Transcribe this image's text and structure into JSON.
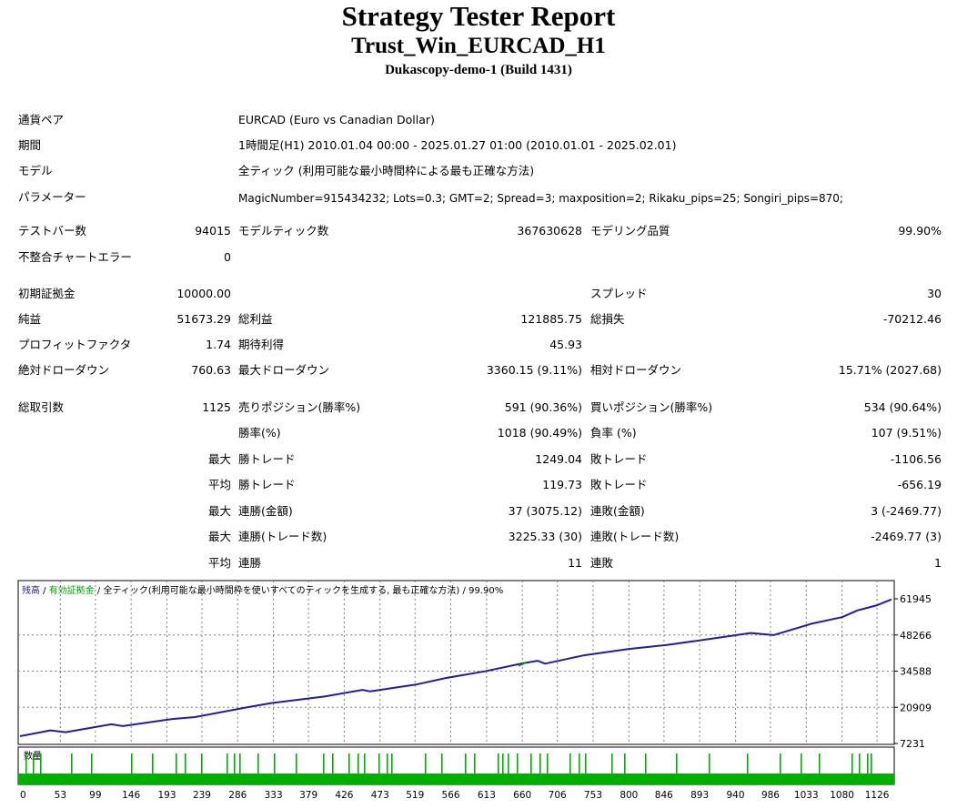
{
  "header": {
    "title": "Strategy Tester Report",
    "subtitle": "Trust_Win_EURCAD_H1",
    "server": "Dukascopy-demo-1 (Build 1431)"
  },
  "info": {
    "pair_label": "通貨ペア",
    "pair_value": "EURCAD (Euro vs Canadian Dollar)",
    "period_label": "期間",
    "period_value": "1時間足(H1) 2010.01.04 00:00 - 2025.01.27 01:00 (2010.01.01 - 2025.02.01)",
    "model_label": "モデル",
    "model_value": "全ティック (利用可能な最小時間枠による最も正確な方法)",
    "params_label": "パラメーター",
    "params_value": "MagicNumber=915434232; Lots=0.3; GMT=2; Spread=3; maxposition=2; Rikaku_pips=25; Songiri_pips=870;"
  },
  "test": {
    "bars_label": "テストバー数",
    "bars_value": "94015",
    "ticks_label": "モデルティック数",
    "ticks_value": "367630628",
    "quality_label": "モデリング品質",
    "quality_value": "99.90%",
    "errors_label": "不整合チャートエラー",
    "errors_value": "0"
  },
  "stats": {
    "deposit_label": "初期証拠金",
    "deposit_value": "10000.00",
    "spread_label": "スプレッド",
    "spread_value": "30",
    "net_label": "純益",
    "net_value": "51673.29",
    "gross_profit_label": "総利益",
    "gross_profit_value": "121885.75",
    "gross_loss_label": "総損失",
    "gross_loss_value": "-70212.46",
    "pf_label": "プロフィットファクタ",
    "pf_value": "1.74",
    "expected_label": "期待利得",
    "expected_value": "45.93",
    "abs_dd_label": "絶対ドローダウン",
    "abs_dd_value": "760.63",
    "max_dd_label": "最大ドローダウン",
    "max_dd_value": "3360.15 (9.11%)",
    "rel_dd_label": "相対ドローダウン",
    "rel_dd_value": "15.71% (2027.68)"
  },
  "trades": {
    "total_label": "総取引数",
    "total_value": "1125",
    "short_label": "売りポジション(勝率%)",
    "short_value": "591 (90.36%)",
    "long_label": "買いポジション(勝率%)",
    "long_value": "534 (90.64%)",
    "win_rate_label": "勝率(%)",
    "win_rate_value": "1018 (90.49%)",
    "loss_rate_label": "負率 (%)",
    "loss_rate_value": "107 (9.51%)",
    "max_label": "最大",
    "avg_label": "平均",
    "win_trade_label": "勝トレード",
    "loss_trade_label": "敗トレード",
    "max_win_trade": "1249.04",
    "max_loss_trade": "-1106.56",
    "avg_win_trade": "119.73",
    "avg_loss_trade": "-656.19",
    "consec_win_amount_label": "連勝(金額)",
    "consec_win_amount": "37 (3075.12)",
    "consec_loss_amount_label": "連敗(金額)",
    "consec_loss_amount": "3 (-2469.77)",
    "consec_win_trades_label": "連勝(トレード数)",
    "consec_win_trades": "3225.33 (30)",
    "consec_loss_trades_label": "連敗(トレード数)",
    "consec_loss_trades": "-2469.77 (3)",
    "avg_consec_win_label": "連勝",
    "avg_consec_win": "11",
    "avg_consec_loss_label": "連敗",
    "avg_consec_loss": "1"
  },
  "chart_data": {
    "type": "line",
    "legend": {
      "balance": "残高",
      "equity": "有効証拠金",
      "model": "全ティック(利用可能な最小時間枠を使いすべてのティックを生成する, 最も正確な方法)",
      "quality": "99.90%",
      "separator": " / "
    },
    "volume_label": "数量",
    "ylim": [
      7231,
      66000
    ],
    "y_ticks": [
      61945,
      48266,
      34588,
      20909,
      7231
    ],
    "x_ticks": [
      0,
      53,
      99,
      146,
      193,
      239,
      286,
      333,
      379,
      426,
      473,
      519,
      566,
      613,
      660,
      706,
      753,
      800,
      846,
      893,
      940,
      986,
      1033,
      1080,
      1126
    ],
    "xlim": [
      0,
      1145
    ],
    "balance_points": [
      [
        0,
        10000
      ],
      [
        40,
        12200
      ],
      [
        60,
        11500
      ],
      [
        120,
        14500
      ],
      [
        135,
        13800
      ],
      [
        200,
        16500
      ],
      [
        230,
        17200
      ],
      [
        300,
        21000
      ],
      [
        330,
        22500
      ],
      [
        400,
        25000
      ],
      [
        450,
        27500
      ],
      [
        460,
        26900
      ],
      [
        520,
        29500
      ],
      [
        560,
        32000
      ],
      [
        610,
        34500
      ],
      [
        660,
        37500
      ],
      [
        680,
        38500
      ],
      [
        690,
        37400
      ],
      [
        740,
        40500
      ],
      [
        800,
        43000
      ],
      [
        850,
        44500
      ],
      [
        900,
        46500
      ],
      [
        960,
        49000
      ],
      [
        990,
        48200
      ],
      [
        1040,
        52500
      ],
      [
        1080,
        55000
      ],
      [
        1100,
        57500
      ],
      [
        1126,
        59500
      ],
      [
        1145,
        61700
      ]
    ],
    "equity_spike": [
      [
        655,
        36500
      ],
      [
        665,
        37800
      ]
    ],
    "colors": {
      "balance": "#1f1f9f",
      "equity": "#00a000",
      "volume": "#00b000",
      "grid": "#808080"
    }
  }
}
